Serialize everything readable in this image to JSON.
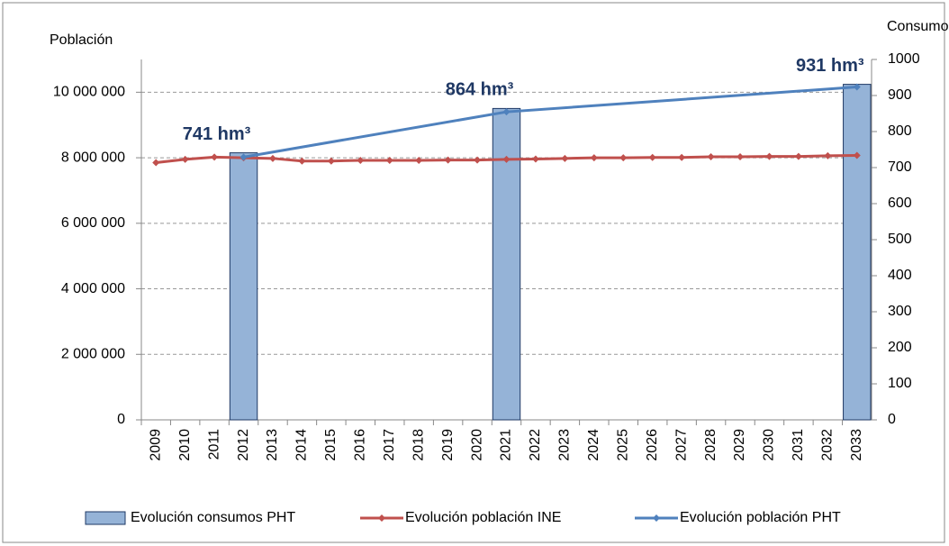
{
  "chart_data": {
    "type": "bar",
    "y_label": "Población",
    "y2_label": "Consumo",
    "categories": [
      "2009",
      "2010",
      "2011",
      "2012",
      "2013",
      "2014",
      "2015",
      "2016",
      "2017",
      "2018",
      "2019",
      "2020",
      "2021",
      "2022",
      "2023",
      "2024",
      "2025",
      "2026",
      "2027",
      "2028",
      "2029",
      "2030",
      "2031",
      "2032",
      "2033"
    ],
    "ylim": [
      0,
      11000000
    ],
    "yticks": [
      0,
      {
        "value": 2000000,
        "label": "2 000 000"
      },
      {
        "value": 4000000,
        "label": "4 000 000"
      },
      {
        "value": 6000000,
        "label": "6 000 000"
      },
      {
        "value": 8000000,
        "label": "8 000 000"
      },
      {
        "value": 10000000,
        "label": "10 000 000"
      }
    ],
    "y2lim": [
      0,
      1000
    ],
    "y2ticks": [
      0,
      100,
      200,
      300,
      400,
      500,
      600,
      700,
      800,
      900,
      1000
    ],
    "grid": true,
    "legend": "bottom",
    "series": [
      {
        "name": "Evolución consumos PHT",
        "type": "bar",
        "axis": "y2",
        "color": "#95b3d7",
        "values": [
          null,
          null,
          null,
          741,
          null,
          null,
          null,
          null,
          null,
          null,
          null,
          null,
          864,
          null,
          null,
          null,
          null,
          null,
          null,
          null,
          null,
          null,
          null,
          null,
          931
        ],
        "value_labels": [
          null,
          null,
          null,
          "741 hm³",
          null,
          null,
          null,
          null,
          null,
          null,
          null,
          null,
          "864 hm³",
          null,
          null,
          null,
          null,
          null,
          null,
          null,
          null,
          null,
          null,
          null,
          "931 hm³"
        ]
      },
      {
        "name": "Evolución población INE",
        "type": "line",
        "color": "#c0504d",
        "values": [
          7850000,
          7950000,
          8020000,
          8000000,
          7980000,
          7900000,
          7900000,
          7920000,
          7920000,
          7920000,
          7930000,
          7930000,
          7950000,
          7960000,
          7980000,
          8000000,
          8000000,
          8010000,
          8010000,
          8030000,
          8030000,
          8040000,
          8040000,
          8060000,
          8070000
        ]
      },
      {
        "name": "Evolución población PHT",
        "type": "line",
        "color": "#4f81bd",
        "x": [
          "2012",
          "2021",
          "2033"
        ],
        "values": [
          8020000,
          9400000,
          10160000
        ]
      }
    ]
  }
}
